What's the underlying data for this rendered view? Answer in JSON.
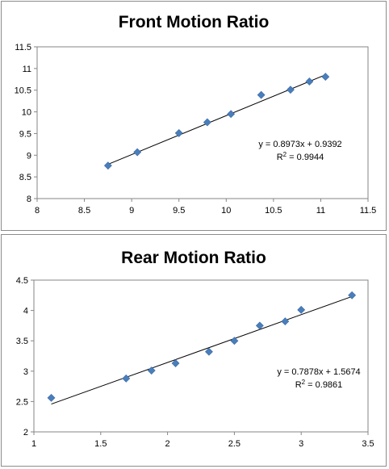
{
  "chart_data": [
    {
      "type": "scatter",
      "title": "Front Motion Ratio",
      "xlabel": "",
      "ylabel": "",
      "xlim": [
        8,
        11.5
      ],
      "ylim": [
        8,
        11.5
      ],
      "x_ticks": [
        "8",
        "8.5",
        "9",
        "9.5",
        "10",
        "10.5",
        "11",
        "11.5"
      ],
      "y_ticks": [
        "8",
        "8.5",
        "9",
        "9.5",
        "10",
        "10.5",
        "11",
        "11.5"
      ],
      "grid": false,
      "legend": "none",
      "marker": "diamond",
      "color": "#4a7ebb",
      "series": [
        {
          "x": [
            8.75,
            9.06,
            9.5,
            9.8,
            10.05,
            10.37,
            10.68,
            10.88,
            11.05
          ],
          "y": [
            8.76,
            9.07,
            9.51,
            9.76,
            9.95,
            10.39,
            10.51,
            10.7,
            10.81
          ]
        }
      ],
      "trendline": {
        "type": "linear",
        "slope": 0.8973,
        "intercept": 0.9392,
        "x_range": [
          8.75,
          11.05
        ]
      },
      "equation": "y = 0.8973x + 0.9392",
      "r2_label": "R",
      "r2_value": " = 0.9944"
    },
    {
      "type": "scatter",
      "title": "Rear Motion Ratio",
      "xlabel": "",
      "ylabel": "",
      "xlim": [
        1,
        3.5
      ],
      "ylim": [
        2,
        4.5
      ],
      "x_ticks": [
        "1",
        "1.5",
        "2",
        "2.5",
        "3",
        "3.5"
      ],
      "y_ticks": [
        "2",
        "2.5",
        "3",
        "3.5",
        "4",
        "4.5"
      ],
      "grid": false,
      "legend": "none",
      "marker": "diamond",
      "color": "#4a7ebb",
      "series": [
        {
          "x": [
            1.13,
            1.69,
            1.88,
            2.06,
            2.31,
            2.5,
            2.69,
            2.88,
            3.0,
            3.38
          ],
          "y": [
            2.56,
            2.88,
            3.01,
            3.13,
            3.32,
            3.5,
            3.75,
            3.82,
            4.01,
            4.25
          ]
        }
      ],
      "trendline": {
        "type": "linear",
        "slope": 0.7878,
        "intercept": 1.5674,
        "x_range": [
          1.13,
          3.38
        ]
      },
      "equation": "y = 0.7878x + 1.5674",
      "r2_label": "R",
      "r2_value": " = 0.9861"
    }
  ]
}
